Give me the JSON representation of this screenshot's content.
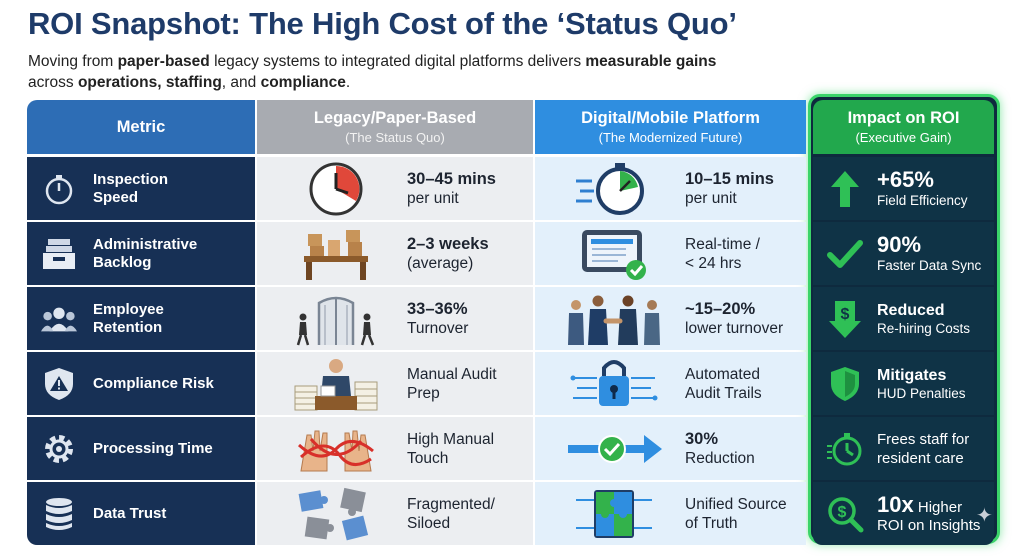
{
  "title": "ROI Snapshot: The High Cost of the ‘Status Quo’",
  "subtitle": {
    "p1": "Moving from ",
    "b1": "paper-based",
    "p2": " legacy systems to integrated digital platforms delivers ",
    "b2": "measurable gains",
    "p3": " across ",
    "b3": "operations, staffing",
    "p4": ", and ",
    "b4": "compliance",
    "p5": "."
  },
  "headers": {
    "metric": "Metric",
    "legacy": "Legacy/Paper-Based",
    "legacy_sub": "(The Status Quo)",
    "digital": "Digital/Mobile Platform",
    "digital_sub": "(The Modernized Future)",
    "impact": "Impact on ROI",
    "impact_sub": "(Executive Gain)"
  },
  "rows": [
    {
      "metric": "Inspection Speed",
      "metric_icon": "stopwatch-icon",
      "legacy_bold": "30–45 mins",
      "legacy_text": "per unit",
      "legacy_icon": "clock-icon",
      "digital_bold": "10–15 mins",
      "digital_text": "per unit",
      "digital_icon": "fast-stopwatch-icon",
      "impact_bold": "+65%",
      "impact_text": "Field Efficiency",
      "impact_icon": "up-arrow-icon"
    },
    {
      "metric": "Administrative Backlog",
      "metric_icon": "inbox-tray-icon",
      "legacy_bold": "2–3 weeks",
      "legacy_text": "(average)",
      "legacy_icon": "desk-boxes-icon",
      "digital_line1": "Real-time /",
      "digital_line2": "< 24 hrs",
      "digital_icon": "tablet-check-icon",
      "impact_bold": "90%",
      "impact_text": "Faster Data Sync",
      "impact_icon": "checkmark-icon"
    },
    {
      "metric": "Employee Retention",
      "metric_icon": "people-group-icon",
      "legacy_bold": "33–36%",
      "legacy_text": "Turnover",
      "legacy_icon": "revolving-door-icon",
      "digital_bold": "~15–20%",
      "digital_text": "lower turnover",
      "digital_icon": "handshake-team-icon",
      "impact_bold": "Reduced",
      "impact_text": "Re-hiring Costs",
      "impact_icon": "dollar-down-icon"
    },
    {
      "metric": "Compliance Risk",
      "metric_icon": "shield-warning-icon",
      "legacy_line1": "Manual Audit",
      "legacy_line2": "Prep",
      "legacy_icon": "paper-stacks-icon",
      "digital_line1": "Automated",
      "digital_line2": "Audit Trails",
      "digital_icon": "digital-lock-icon",
      "impact_bold": "Mitigates",
      "impact_text": "HUD Penalties",
      "impact_icon": "shield-check-icon"
    },
    {
      "metric": "Processing Time",
      "metric_icon": "gear-icon",
      "legacy_line1": "High Manual",
      "legacy_line2": "Touch",
      "legacy_icon": "red-tape-hands-icon",
      "digital_bold": "30%",
      "digital_text": "Reduction",
      "digital_icon": "check-arrow-icon",
      "impact_line1": "Frees staff for",
      "impact_line2": "resident care",
      "impact_icon": "timer-icon"
    },
    {
      "metric": "Data Trust",
      "metric_icon": "database-icon",
      "legacy_line1": "Fragmented/",
      "legacy_line2": "Siloed",
      "legacy_icon": "scattered-puzzle-icon",
      "digital_line1": "Unified Source",
      "digital_line2": "of Truth",
      "digital_icon": "connected-puzzle-icon",
      "impact_bold": "10x",
      "impact_inline": " Higher",
      "impact_text": "ROI on Insights",
      "impact_icon": "dollar-search-icon"
    }
  ],
  "colors": {
    "title": "#1e3b69",
    "metric_header": "#2d6db5",
    "legacy_header": "#a8abb1",
    "digital_header": "#2f8ee0",
    "impact_header": "#22a84d",
    "impact_glow": "#3bd46a"
  }
}
